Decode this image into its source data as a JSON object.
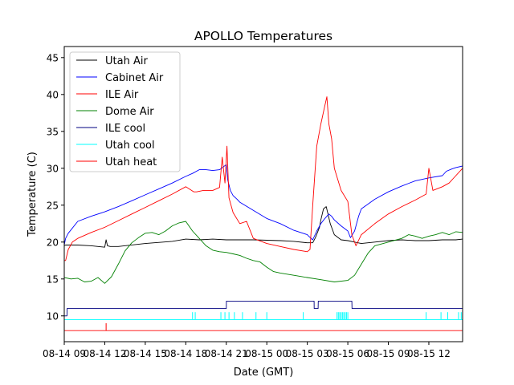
{
  "chart_data": {
    "type": "line",
    "title": "APOLLO Temperatures",
    "xlabel": "Date (GMT)",
    "ylabel": "Temperature (C)",
    "xlim": [
      0,
      29.5
    ],
    "ylim": [
      6.5,
      46.5
    ],
    "yticks": [
      10,
      15,
      20,
      25,
      30,
      35,
      40,
      45
    ],
    "xtick_positions": [
      0,
      3,
      6,
      9,
      12,
      15,
      18,
      21,
      24,
      27
    ],
    "xtick_labels": [
      "08-14 09",
      "08-14 12",
      "08-14 15",
      "08-14 18",
      "08-14 21",
      "08-15 00",
      "08-15 03",
      "08-15 06",
      "08-15 09",
      "08-15 12"
    ],
    "legend_position": "top-left",
    "series": [
      {
        "name": "Utah Air",
        "color": "#000000",
        "x": [
          0,
          0.1,
          0.25,
          1,
          2,
          3,
          3.1,
          3.2,
          3.4,
          4,
          6,
          8,
          9,
          10,
          11,
          12,
          14,
          16,
          17,
          18,
          18.4,
          18.6,
          18.9,
          19,
          19.2,
          19.4,
          19.7,
          20,
          20.5,
          21,
          21.5,
          22,
          23,
          24,
          25,
          26,
          27,
          28,
          29,
          29.5
        ],
        "y": [
          19.5,
          19.6,
          19.6,
          19.6,
          19.5,
          19.3,
          20.3,
          19.5,
          19.4,
          19.4,
          19.8,
          20.1,
          20.4,
          20.3,
          20.4,
          20.3,
          20.3,
          20.2,
          20.1,
          19.9,
          19.9,
          20.6,
          22.0,
          23.0,
          24.5,
          24.8,
          22.5,
          21.0,
          20.3,
          20.2,
          20.0,
          19.8,
          20.0,
          20.2,
          20.3,
          20.2,
          20.2,
          20.3,
          20.3,
          20.4
        ]
      },
      {
        "name": "Cabinet Air",
        "color": "#0000ff",
        "x": [
          0,
          0.1,
          0.3,
          1,
          2,
          3,
          4,
          5,
          6,
          7,
          8,
          9,
          9.5,
          10,
          10.5,
          11,
          11.5,
          12,
          12.1,
          12.3,
          12.5,
          12.8,
          13,
          14,
          15,
          16,
          17,
          18,
          18.1,
          18.4,
          18.7,
          19,
          19.3,
          19.6,
          19.8,
          20,
          20.5,
          21,
          21.2,
          21.5,
          21.8,
          22,
          23,
          24,
          25,
          26,
          27,
          28,
          28.3,
          28.7,
          29,
          29.5
        ],
        "y": [
          19.6,
          20.5,
          21.2,
          22.8,
          23.5,
          24.1,
          24.8,
          25.6,
          26.4,
          27.2,
          28.0,
          28.9,
          29.3,
          29.8,
          29.8,
          29.7,
          29.8,
          30.5,
          28.5,
          27.0,
          26.3,
          25.8,
          25.4,
          24.3,
          23.2,
          22.5,
          21.6,
          21.0,
          20.8,
          20.3,
          21.5,
          22.5,
          23.2,
          23.8,
          23.5,
          23.0,
          22.2,
          21.5,
          20.6,
          21.5,
          23.5,
          24.5,
          25.8,
          26.8,
          27.6,
          28.3,
          28.7,
          29.0,
          29.6,
          29.9,
          30.1,
          30.3
        ]
      },
      {
        "name": "ILE Air",
        "color": "#ff0000",
        "x": [
          0,
          0.1,
          0.3,
          0.6,
          1,
          2,
          3,
          4,
          5,
          6,
          7,
          8,
          9,
          9.6,
          9.8,
          10.3,
          11,
          11.5,
          11.7,
          11.9,
          12.05,
          12.2,
          12.5,
          13,
          13.5,
          14,
          15,
          16,
          17,
          18,
          18.2,
          18.4,
          18.7,
          19,
          19.3,
          19.45,
          19.6,
          19.8,
          20,
          20.5,
          21,
          21.3,
          21.6,
          22,
          23,
          24,
          25,
          26,
          26.8,
          27,
          27.3,
          28,
          28.5,
          29,
          29.5
        ],
        "y": [
          17.5,
          17.5,
          19.0,
          20.0,
          20.5,
          21.3,
          22.0,
          22.9,
          23.8,
          24.7,
          25.6,
          26.5,
          27.5,
          26.8,
          26.8,
          27.0,
          27.0,
          27.4,
          31.5,
          28.0,
          33.0,
          26.0,
          24.0,
          22.5,
          22.8,
          20.5,
          19.8,
          19.4,
          19.0,
          18.7,
          19.0,
          25.0,
          33.0,
          36.0,
          38.5,
          39.7,
          36.0,
          34.0,
          30.0,
          27.0,
          25.5,
          21.0,
          19.5,
          21.0,
          22.5,
          23.8,
          24.8,
          25.7,
          26.5,
          30.0,
          27.0,
          27.5,
          28.0,
          29.0,
          30.0
        ]
      },
      {
        "name": "Dome Air",
        "color": "#008000",
        "x": [
          0,
          0.5,
          1,
          1.5,
          2,
          2.5,
          3,
          3.5,
          4,
          4.5,
          5,
          5.5,
          6,
          6.5,
          7,
          7.5,
          8,
          8.5,
          9,
          9.5,
          10,
          10.5,
          11,
          11.5,
          12,
          12.5,
          13,
          13.5,
          14,
          14.5,
          15,
          15.5,
          16,
          17,
          18,
          19,
          20,
          21,
          21.5,
          22,
          22.5,
          23,
          24,
          25,
          25.5,
          26,
          26.5,
          27,
          27.5,
          28,
          28.5,
          29,
          29.5
        ],
        "y": [
          15.2,
          15.0,
          15.1,
          14.6,
          14.7,
          15.2,
          14.4,
          15.3,
          17.0,
          18.8,
          19.9,
          20.6,
          21.2,
          21.3,
          21.0,
          21.5,
          22.2,
          22.6,
          22.8,
          21.5,
          20.5,
          19.5,
          18.9,
          18.7,
          18.6,
          18.4,
          18.2,
          17.8,
          17.5,
          17.3,
          16.6,
          16.0,
          15.8,
          15.5,
          15.2,
          14.9,
          14.6,
          14.8,
          15.5,
          17.0,
          18.5,
          19.5,
          20.0,
          20.5,
          21.0,
          20.8,
          20.5,
          20.8,
          21.0,
          21.3,
          21.0,
          21.4,
          21.3
        ]
      },
      {
        "name": "ILE cool",
        "color": "#000080",
        "x": [
          0,
          0.2,
          0.21,
          12,
          12.01,
          18.5,
          18.51,
          18.8,
          18.81,
          21.3,
          21.31,
          29.5
        ],
        "y": [
          10,
          10,
          11,
          11,
          12,
          12,
          11,
          11,
          12,
          12,
          11,
          11
        ]
      },
      {
        "name": "Utah cool",
        "color": "#00ffff",
        "x": [
          0,
          29.5
        ],
        "y": [
          9.5,
          9.5
        ],
        "spikes": [
          9.5,
          9.7,
          11.6,
          11.9,
          12.2,
          12.6,
          13.2,
          14.2,
          15.0,
          17.7,
          20.2,
          20.3,
          20.4,
          20.5,
          20.6,
          20.7,
          20.8,
          20.9,
          21.0,
          26.8,
          27.9,
          28.4,
          29.2,
          29.4
        ],
        "spike_top": 10.5
      },
      {
        "name": "Utah heat",
        "color": "#ff0000",
        "x": [
          0,
          29.5
        ],
        "y": [
          8,
          8
        ],
        "spikes": [
          3.1
        ],
        "spike_top": 9.0
      }
    ]
  }
}
